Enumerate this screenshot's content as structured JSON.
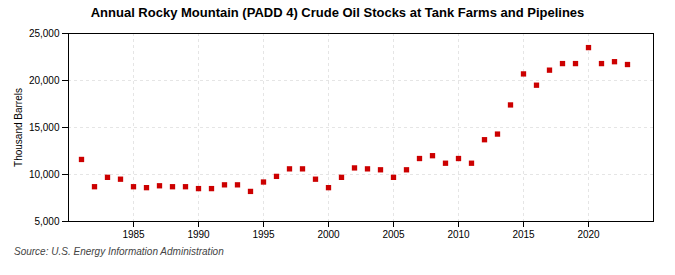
{
  "chart_data": {
    "type": "scatter",
    "title": "Annual Rocky Mountain (PADD 4) Crude Oil Stocks at Tank Farms and Pipelines",
    "ylabel": "Thousand Barrels",
    "source": "Source: U.S. Energy Information Administration",
    "x": [
      1981,
      1982,
      1983,
      1984,
      1985,
      1986,
      1987,
      1988,
      1989,
      1990,
      1991,
      1992,
      1993,
      1994,
      1995,
      1996,
      1997,
      1998,
      1999,
      2000,
      2001,
      2002,
      2003,
      2004,
      2005,
      2006,
      2007,
      2008,
      2009,
      2010,
      2011,
      2012,
      2013,
      2014,
      2015,
      2016,
      2017,
      2018,
      2019,
      2020,
      2021,
      2022,
      2023
    ],
    "values": [
      11600,
      8700,
      9700,
      9500,
      8700,
      8600,
      8800,
      8700,
      8700,
      8500,
      8500,
      8900,
      8900,
      8200,
      9200,
      9800,
      10600,
      10600,
      9500,
      8600,
      9700,
      10700,
      10600,
      10500,
      9700,
      10500,
      11700,
      12000,
      11200,
      11700,
      11200,
      13700,
      14300,
      17400,
      20700,
      19500,
      21100,
      21800,
      21800,
      23500,
      21800,
      22000,
      21700
    ],
    "color": "#cc0000",
    "marker": "square",
    "xlim": [
      1980,
      2025
    ],
    "xticks": [
      1985,
      1990,
      1995,
      2000,
      2005,
      2010,
      2015,
      2020
    ],
    "ylim": [
      5000,
      25000
    ],
    "yticks": [
      {
        "value": 5000,
        "label": "5,000"
      },
      {
        "value": 10000,
        "label": "10,000"
      },
      {
        "value": 15000,
        "label": "15,000"
      },
      {
        "value": 20000,
        "label": "20,000"
      },
      {
        "value": 25000,
        "label": "25,000"
      }
    ],
    "grid": true
  }
}
